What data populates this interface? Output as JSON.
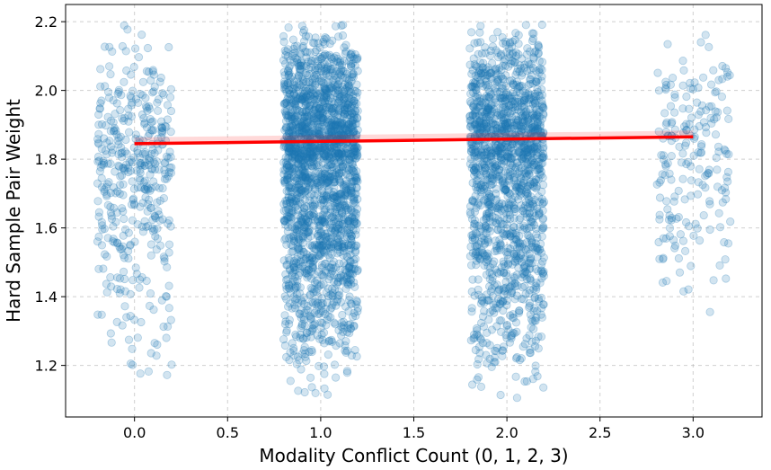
{
  "chart_data": {
    "type": "scatter",
    "title": "",
    "xlabel": "Modality Conflict Count (0, 1, 2, 3)",
    "ylabel": "Hard Sample Pair Weight",
    "xlim": [
      -0.37,
      3.37
    ],
    "ylim": [
      1.05,
      2.25
    ],
    "grid": true,
    "x_ticks": [
      0.0,
      0.5,
      1.0,
      1.5,
      2.0,
      2.5,
      3.0
    ],
    "x_tick_labels": [
      "0.0",
      "0.5",
      "1.0",
      "1.5",
      "2.0",
      "2.5",
      "3.0"
    ],
    "y_ticks": [
      1.2,
      1.4,
      1.6,
      1.8,
      2.0,
      2.2
    ],
    "y_tick_labels": [
      "1.2",
      "1.4",
      "1.6",
      "1.8",
      "2.0",
      "2.2"
    ],
    "scatter_color": "#1f77b4",
    "scatter_alpha": 0.2,
    "jitter_width": 0.2,
    "groups": [
      {
        "x": 0,
        "count": 420,
        "y_min": 1.11,
        "y_max": 2.2,
        "y_mode": 1.85
      },
      {
        "x": 1,
        "count": 2100,
        "y_min": 1.11,
        "y_max": 2.2,
        "y_mode": 1.9
      },
      {
        "x": 2,
        "count": 1550,
        "y_min": 1.1,
        "y_max": 2.2,
        "y_mode": 1.9
      },
      {
        "x": 3,
        "count": 200,
        "y_min": 1.34,
        "y_max": 2.2,
        "y_mode": 1.9
      }
    ],
    "trend_line": {
      "color": "#ff0000",
      "x": [
        0,
        3
      ],
      "y": [
        1.845,
        1.865
      ]
    }
  }
}
